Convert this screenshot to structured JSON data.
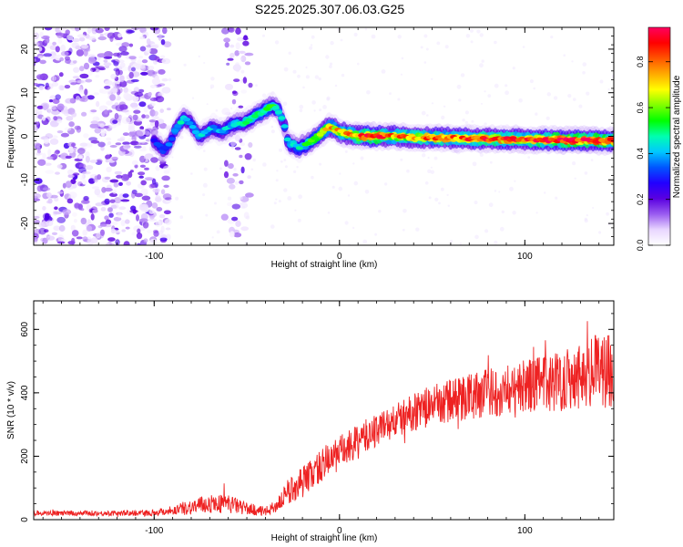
{
  "title": "S225.2025.307.06.03.G25",
  "chart_data": [
    {
      "type": "heatmap",
      "name": "spectrogram",
      "xlabel": "Height of straight line (km)",
      "ylabel": "Frequency (Hz)",
      "xlim": [
        -165,
        148
      ],
      "ylim": [
        -25,
        25
      ],
      "xticks": [
        -100,
        0,
        100
      ],
      "yticks": [
        -20,
        -10,
        0,
        10,
        20
      ],
      "colorbar": {
        "label": "Normalized spectral amplitude",
        "range": [
          0,
          0.95
        ],
        "ticks": [
          0.0,
          0.2,
          0.4,
          0.6,
          0.8
        ],
        "tick_labels": [
          "0.0",
          "0.2",
          "0.4",
          "0.6",
          "0.8"
        ],
        "colors": [
          "#ffffff",
          "#e8d6ff",
          "#9a5cf0",
          "#5a00e0",
          "#2200ff",
          "#0055ff",
          "#00c8ff",
          "#00ffb0",
          "#00ff00",
          "#7fff00",
          "#ffff00",
          "#ffaa00",
          "#ff5500",
          "#ff0000",
          "#ff0060"
        ]
      },
      "ridge": {
        "x": [
          -100,
          -95,
          -92,
          -88,
          -84,
          -80,
          -76,
          -72,
          -68,
          -64,
          -60,
          -56,
          -52,
          -48,
          -44,
          -40,
          -36,
          -33,
          -30,
          -28,
          -26,
          -24,
          -22,
          -20,
          -18,
          -15,
          -12,
          -9,
          -6,
          -3,
          0,
          5,
          10,
          15,
          20,
          30,
          40,
          50,
          60,
          70,
          80,
          90,
          100,
          110,
          120,
          130,
          140,
          148
        ],
        "y": [
          -1,
          -3,
          -2,
          2,
          4,
          3,
          0,
          1,
          2,
          1,
          2,
          3,
          3,
          4,
          5,
          6,
          7,
          6,
          3,
          -1,
          -2,
          -2,
          -3,
          -2,
          -2,
          -1,
          0,
          1,
          2,
          2,
          1,
          0.5,
          0,
          0,
          0,
          0,
          -0.3,
          -0.3,
          -0.4,
          -0.5,
          -0.6,
          -0.6,
          -0.7,
          -0.8,
          -0.9,
          -0.9,
          -1,
          -1
        ],
        "amplitude": [
          0.3,
          0.35,
          0.35,
          0.4,
          0.45,
          0.4,
          0.4,
          0.4,
          0.4,
          0.4,
          0.4,
          0.45,
          0.45,
          0.5,
          0.5,
          0.55,
          0.5,
          0.45,
          0.4,
          0.4,
          0.45,
          0.45,
          0.45,
          0.45,
          0.5,
          0.55,
          0.6,
          0.65,
          0.7,
          0.72,
          0.7,
          0.75,
          0.8,
          0.9,
          0.85,
          0.75,
          0.75,
          0.78,
          0.8,
          0.8,
          0.82,
          0.82,
          0.8,
          0.85,
          0.88,
          0.9,
          0.9,
          0.85
        ]
      },
      "noise_regions": [
        {
          "x": [
            -165,
            -92
          ],
          "y": [
            -25,
            25
          ],
          "density": 0.9
        },
        {
          "x": [
            -62,
            -48
          ],
          "y": [
            -25,
            25
          ],
          "density": 0.5
        }
      ]
    },
    {
      "type": "line",
      "name": "snr",
      "xlabel": "Height of straight line (km)",
      "ylabel": "SNR (10 * v/v)",
      "xlim": [
        -165,
        148
      ],
      "ylim": [
        0,
        690
      ],
      "xticks": [
        -100,
        0,
        100
      ],
      "yticks": [
        0,
        200,
        400,
        600
      ],
      "color": "#ee2222",
      "envelope": {
        "x": [
          -165,
          -120,
          -100,
          -90,
          -80,
          -70,
          -60,
          -50,
          -40,
          -35,
          -30,
          -25,
          -20,
          -15,
          -10,
          -5,
          0,
          10,
          20,
          30,
          40,
          50,
          60,
          70,
          80,
          90,
          100,
          110,
          120,
          130,
          140,
          148
        ],
        "mean": [
          20,
          20,
          22,
          30,
          40,
          50,
          50,
          35,
          25,
          40,
          70,
          100,
          120,
          145,
          170,
          190,
          210,
          245,
          285,
          310,
          340,
          360,
          375,
          390,
          400,
          410,
          420,
          430,
          440,
          460,
          470,
          480
        ],
        "noise": [
          8,
          8,
          10,
          15,
          25,
          30,
          30,
          20,
          15,
          20,
          35,
          45,
          50,
          50,
          55,
          55,
          55,
          55,
          55,
          55,
          60,
          65,
          70,
          75,
          80,
          80,
          85,
          90,
          100,
          110,
          120,
          125
        ]
      }
    }
  ]
}
